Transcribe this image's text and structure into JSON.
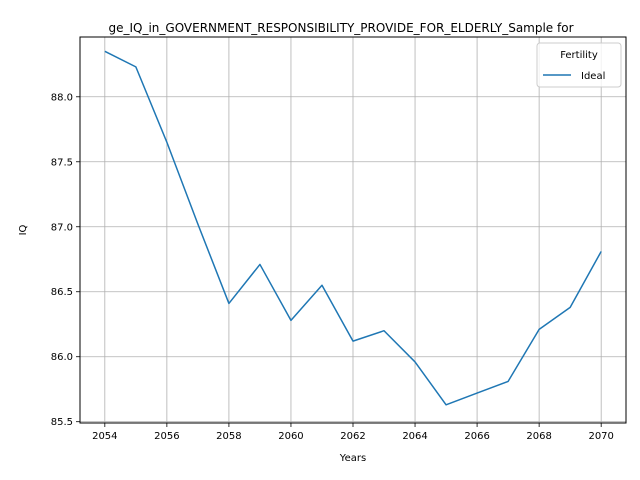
{
  "chart_data": {
    "type": "line",
    "title": "ge_IQ_in_GOVERNMENT_RESPONSIBILITY_PROVIDE_FOR_ELDERLY_Sample for",
    "xlabel": "Years",
    "ylabel": "IQ",
    "xlim": [
      2053.2,
      2070.8
    ],
    "ylim": [
      85.49,
      88.46
    ],
    "xticks": [
      2054,
      2056,
      2058,
      2060,
      2062,
      2064,
      2066,
      2068,
      2070
    ],
    "yticks": [
      85.5,
      86.0,
      86.5,
      87.0,
      87.5,
      88.0
    ],
    "ytick_labels": [
      "85.5",
      "86.0",
      "86.5",
      "87.0",
      "87.5",
      "88.0"
    ],
    "grid": true,
    "legend": {
      "title": "Fertility",
      "placement": "top-right"
    },
    "series": [
      {
        "name": "Ideal",
        "color": "#1f77b4",
        "x": [
          2054,
          2055,
          2056,
          2057,
          2058,
          2059,
          2060,
          2061,
          2062,
          2063,
          2064,
          2065,
          2066,
          2067,
          2068,
          2069,
          2070
        ],
        "values": [
          88.35,
          88.23,
          87.65,
          87.02,
          86.41,
          86.71,
          86.28,
          86.55,
          86.12,
          86.2,
          85.96,
          85.63,
          85.72,
          85.81,
          86.21,
          86.38,
          86.81
        ]
      }
    ]
  }
}
